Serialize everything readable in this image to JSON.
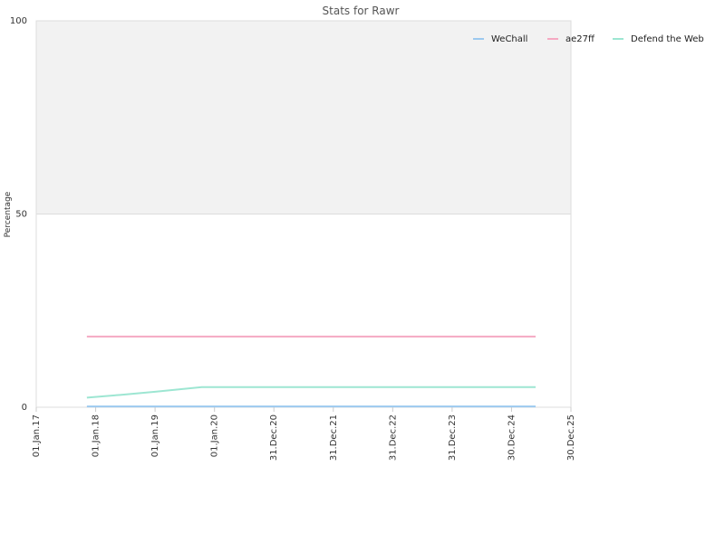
{
  "chart_data": {
    "type": "line",
    "title": "Stats for Rawr",
    "y_label": "Percentage",
    "x": [
      "2017-11-08",
      "2018-06-01",
      "2019-01-01",
      "2019-10-15",
      "2021-01-01",
      "2023-01-01",
      "2025-05-27"
    ],
    "series": [
      {
        "name": "WeChall",
        "color": "#9cc9ef",
        "values": [
          0.2,
          0.2,
          0.2,
          0.2,
          0.2,
          0.2,
          0.2
        ]
      },
      {
        "name": "ae27ff",
        "color": "#f5a9c2",
        "values": [
          18.3,
          18.3,
          18.3,
          18.3,
          18.3,
          18.3,
          18.3
        ]
      },
      {
        "name": "Defend the Web",
        "color": "#9de6d2",
        "values": [
          2.5,
          3.2,
          4.0,
          5.2,
          5.2,
          5.2,
          5.2
        ]
      }
    ],
    "xlim": [
      "2017-01-01",
      "2025-12-30"
    ],
    "xticks": [
      {
        "value": "2017-01-01",
        "label": "01.Jan.17"
      },
      {
        "value": "2018-01-01",
        "label": "01.Jan.18"
      },
      {
        "value": "2019-01-01",
        "label": "01.Jan.19"
      },
      {
        "value": "2020-01-01",
        "label": "01.Jan.20"
      },
      {
        "value": "2020-12-31",
        "label": "31.Dec.20"
      },
      {
        "value": "2021-12-31",
        "label": "31.Dec.21"
      },
      {
        "value": "2022-12-31",
        "label": "31.Dec.22"
      },
      {
        "value": "2023-12-31",
        "label": "31.Dec.23"
      },
      {
        "value": "2024-12-30",
        "label": "30.Dec.24"
      },
      {
        "value": "2025-12-30",
        "label": "30.Dec.25"
      }
    ],
    "ylim": [
      0,
      100
    ],
    "yticks": [
      0,
      50,
      100
    ],
    "grid": true,
    "legend": "top-right"
  }
}
